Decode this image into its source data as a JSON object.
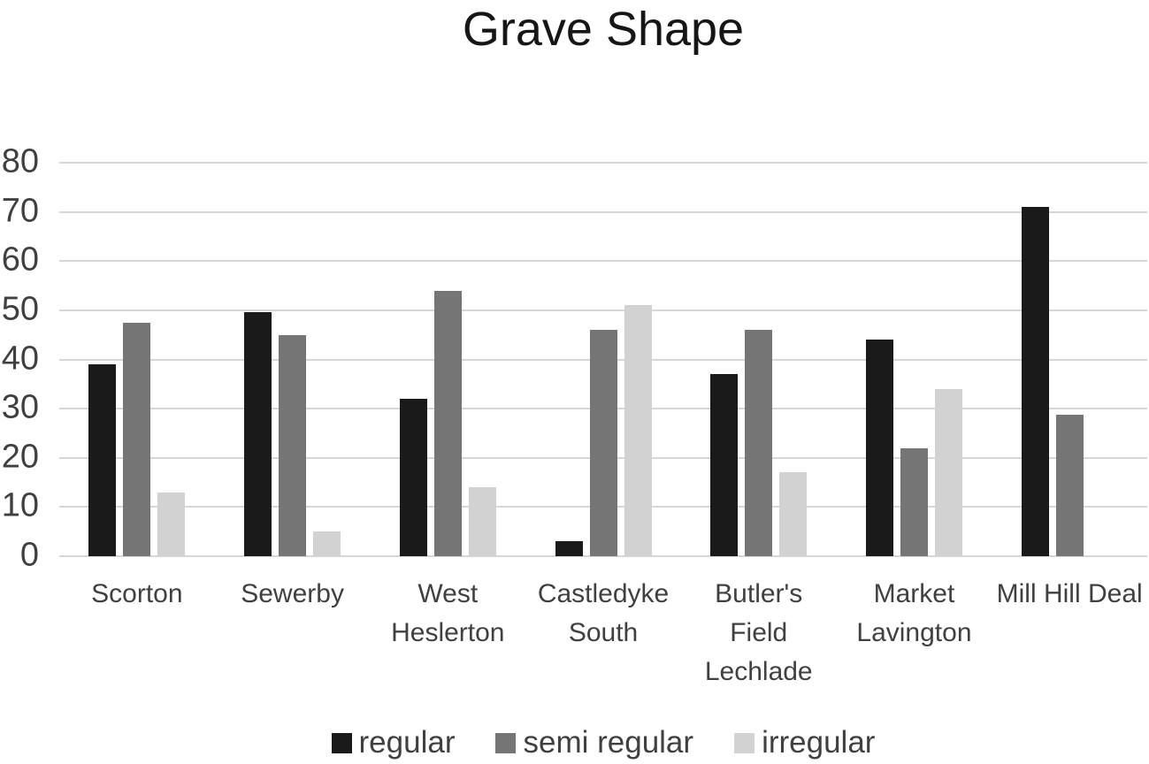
{
  "chart_data": {
    "type": "bar",
    "title": "Grave Shape",
    "xlabel": "",
    "ylabel": "",
    "ylim": [
      0,
      80
    ],
    "yticks": [
      0,
      10,
      20,
      30,
      40,
      50,
      60,
      70,
      80
    ],
    "grid": true,
    "legend_position": "bottom",
    "categories": [
      "Scorton",
      "Sewerby",
      "West Heslerton",
      "Castledyke South",
      "Butler's Field Lechlade",
      "Market Lavington",
      "Mill Hill Deal"
    ],
    "category_label_lines": [
      [
        "Scorton"
      ],
      [
        "Sewerby"
      ],
      [
        "West",
        "Heslerton"
      ],
      [
        "Castledyke",
        "South"
      ],
      [
        "Butler's",
        "Field",
        "Lechlade"
      ],
      [
        "Market",
        "Lavington"
      ],
      [
        "Mill Hill Deal"
      ]
    ],
    "series": [
      {
        "name": "regular",
        "color": "#1a1a1a",
        "values": [
          39,
          49.7,
          32,
          3,
          37,
          44,
          71
        ]
      },
      {
        "name": "semi regular",
        "color": "#757575",
        "values": [
          47.5,
          45,
          54,
          46,
          46,
          22,
          28.7
        ]
      },
      {
        "name": "irregular",
        "color": "#d2d2d2",
        "values": [
          13,
          5,
          14,
          51,
          17,
          34,
          0
        ]
      }
    ],
    "colors": {
      "gridline": "#d6d6d6",
      "axis_text": "#404040",
      "title_text": "#161616",
      "background": "#ffffff"
    }
  }
}
